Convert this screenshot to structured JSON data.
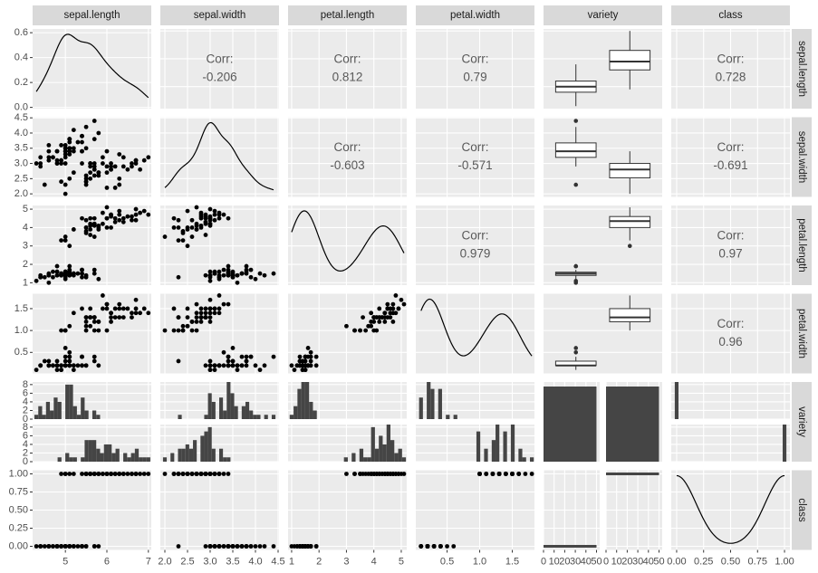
{
  "chart_data": {
    "type": "pairs",
    "variables": [
      "sepal.length",
      "sepal.width",
      "petal.length",
      "petal.width",
      "variety",
      "class"
    ],
    "columns": [
      [
        5.1,
        4.9,
        4.7,
        4.6,
        5.0,
        5.4,
        4.6,
        5.0,
        4.4,
        4.9,
        5.4,
        4.8,
        4.8,
        4.3,
        5.8,
        5.7,
        5.4,
        5.1,
        5.7,
        5.1,
        5.4,
        5.1,
        4.6,
        5.1,
        4.8,
        5.0,
        5.0,
        5.2,
        5.2,
        4.7,
        4.8,
        5.4,
        5.2,
        5.5,
        4.9,
        5.0,
        5.5,
        4.9,
        4.4,
        5.1,
        5.0,
        4.5,
        4.4,
        5.0,
        5.1,
        4.8,
        5.1,
        4.6,
        5.3,
        5.0,
        7.0,
        6.4,
        6.9,
        5.5,
        6.5,
        5.7,
        6.3,
        4.9,
        6.6,
        5.2,
        5.0,
        5.9,
        6.0,
        6.1,
        5.6,
        6.7,
        5.6,
        5.8,
        6.2,
        5.6,
        5.9,
        6.1,
        6.3,
        6.1,
        6.4,
        6.6,
        6.8,
        6.7,
        6.0,
        5.7,
        5.5,
        5.5,
        5.8,
        6.0,
        5.4,
        6.0,
        6.7,
        6.3,
        5.6,
        5.5,
        5.5,
        6.1,
        5.8,
        5.0,
        5.6,
        5.7,
        5.7,
        6.2,
        5.1,
        5.7
      ],
      [
        3.5,
        3.0,
        3.2,
        3.1,
        3.6,
        3.9,
        3.4,
        3.4,
        2.9,
        3.1,
        3.7,
        3.4,
        3.0,
        3.0,
        4.0,
        4.4,
        3.9,
        3.5,
        3.8,
        3.8,
        3.4,
        3.7,
        3.6,
        3.3,
        3.4,
        3.0,
        3.4,
        3.5,
        3.4,
        3.2,
        3.1,
        3.4,
        4.1,
        4.2,
        3.1,
        3.2,
        3.5,
        3.6,
        3.0,
        3.4,
        3.5,
        2.3,
        3.2,
        3.5,
        3.8,
        3.0,
        3.8,
        3.2,
        3.7,
        3.3,
        3.2,
        3.2,
        3.1,
        2.3,
        2.8,
        2.8,
        3.3,
        2.4,
        2.9,
        2.7,
        2.0,
        3.0,
        2.2,
        2.9,
        2.9,
        3.1,
        3.0,
        2.7,
        2.2,
        2.5,
        3.2,
        2.8,
        2.5,
        2.8,
        2.9,
        3.0,
        2.8,
        3.0,
        2.9,
        2.6,
        2.4,
        2.4,
        2.7,
        2.7,
        3.0,
        3.4,
        3.1,
        2.3,
        3.0,
        2.5,
        2.6,
        3.0,
        2.6,
        2.3,
        2.7,
        3.0,
        2.9,
        2.9,
        2.5,
        2.8
      ],
      [
        1.4,
        1.4,
        1.3,
        1.5,
        1.4,
        1.7,
        1.4,
        1.5,
        1.4,
        1.5,
        1.5,
        1.6,
        1.4,
        1.1,
        1.2,
        1.5,
        1.3,
        1.4,
        1.7,
        1.5,
        1.7,
        1.5,
        1.0,
        1.7,
        1.9,
        1.6,
        1.6,
        1.5,
        1.4,
        1.6,
        1.6,
        1.5,
        1.5,
        1.4,
        1.5,
        1.2,
        1.3,
        1.4,
        1.3,
        1.5,
        1.3,
        1.3,
        1.3,
        1.6,
        1.9,
        1.4,
        1.6,
        1.4,
        1.5,
        1.4,
        4.7,
        4.5,
        4.9,
        4.0,
        4.6,
        4.5,
        4.7,
        3.3,
        4.6,
        3.9,
        3.5,
        4.2,
        4.0,
        4.7,
        3.6,
        4.4,
        4.5,
        4.1,
        4.5,
        3.9,
        4.8,
        4.0,
        4.9,
        4.7,
        4.3,
        4.4,
        4.8,
        5.0,
        4.5,
        3.5,
        3.8,
        3.7,
        3.9,
        5.1,
        4.5,
        4.5,
        4.7,
        4.4,
        4.1,
        4.0,
        4.4,
        4.6,
        4.0,
        3.3,
        4.2,
        4.2,
        4.2,
        4.3,
        3.0,
        4.1
      ],
      [
        0.2,
        0.2,
        0.2,
        0.2,
        0.2,
        0.4,
        0.3,
        0.2,
        0.2,
        0.1,
        0.2,
        0.2,
        0.1,
        0.1,
        0.2,
        0.4,
        0.4,
        0.3,
        0.3,
        0.3,
        0.2,
        0.4,
        0.2,
        0.5,
        0.2,
        0.2,
        0.4,
        0.2,
        0.2,
        0.2,
        0.2,
        0.4,
        0.1,
        0.2,
        0.2,
        0.2,
        0.2,
        0.1,
        0.2,
        0.2,
        0.3,
        0.3,
        0.2,
        0.6,
        0.4,
        0.3,
        0.2,
        0.2,
        0.2,
        0.2,
        1.4,
        1.5,
        1.5,
        1.3,
        1.5,
        1.3,
        1.6,
        1.0,
        1.3,
        1.4,
        1.0,
        1.5,
        1.0,
        1.4,
        1.3,
        1.4,
        1.5,
        1.0,
        1.5,
        1.1,
        1.8,
        1.3,
        1.5,
        1.2,
        1.3,
        1.4,
        1.4,
        1.7,
        1.5,
        1.0,
        1.1,
        1.0,
        1.2,
        1.6,
        1.5,
        1.6,
        1.5,
        1.3,
        1.3,
        1.3,
        1.2,
        1.4,
        1.2,
        1.0,
        1.3,
        1.2,
        1.3,
        1.3,
        1.1,
        1.3
      ],
      [
        0,
        0,
        0,
        0,
        0,
        0,
        0,
        0,
        0,
        0,
        0,
        0,
        0,
        0,
        0,
        0,
        0,
        0,
        0,
        0,
        0,
        0,
        0,
        0,
        0,
        0,
        0,
        0,
        0,
        0,
        0,
        0,
        0,
        0,
        0,
        0,
        0,
        0,
        0,
        0,
        0,
        0,
        0,
        0,
        0,
        0,
        0,
        0,
        0,
        0,
        1,
        1,
        1,
        1,
        1,
        1,
        1,
        1,
        1,
        1,
        1,
        1,
        1,
        1,
        1,
        1,
        1,
        1,
        1,
        1,
        1,
        1,
        1,
        1,
        1,
        1,
        1,
        1,
        1,
        1,
        1,
        1,
        1,
        1,
        1,
        1,
        1,
        1,
        1,
        1,
        1,
        1,
        1,
        1,
        1,
        1,
        1,
        1,
        1,
        1
      ]
    ],
    "scales": [
      {
        "lim": [
          4.21,
          7.07
        ],
        "ticks": [
          5,
          6,
          7
        ]
      },
      {
        "lim": [
          1.9,
          4.52
        ],
        "ticks": [
          {
            "value": 2,
            "label": "2.0"
          },
          2.5,
          {
            "value": 3,
            "label": "3.0"
          },
          3.5,
          {
            "value": 4,
            "label": "4.0"
          },
          4.5
        ]
      },
      {
        "lim": [
          0.87,
          5.2
        ],
        "ticks": [
          1,
          2,
          3,
          4,
          5
        ]
      },
      {
        "lim": [
          0.02,
          1.84
        ],
        "ticks": [
          0.5,
          {
            "value": 1,
            "label": "1.0"
          },
          1.5
        ]
      },
      {
        "lim": [
          -0.05,
          1.05
        ],
        "ticks": [
          {
            "value": 0,
            "label": "0.00"
          },
          0.25,
          {
            "value": 0.5,
            "label": "0.50"
          },
          0.75,
          {
            "value": 1,
            "label": "1.00"
          }
        ]
      }
    ],
    "density_ylim": [
      -0.01,
      0.63
    ],
    "density_yticks": [
      {
        "value": 0,
        "label": "0.0"
      },
      0.2,
      0.4,
      0.6
    ],
    "count_ylim": [
      0,
      8.6
    ],
    "count_yticks": [
      0,
      2,
      4,
      6,
      8
    ],
    "count_xlim": [
      0,
      53
    ],
    "count_xticks": [
      0,
      10,
      20,
      30,
      40,
      50
    ],
    "corr_label": "Corr:",
    "correlations": [
      [
        -0.206,
        0.812,
        0.79,
        0.728
      ],
      [
        -0.603,
        -0.571,
        -0.691
      ],
      [
        0.979,
        0.97
      ],
      [
        0.96
      ]
    ]
  }
}
